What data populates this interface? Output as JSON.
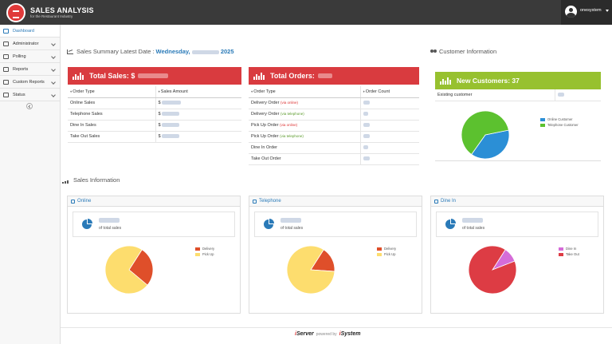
{
  "header": {
    "app_title": "SALES ANALYSIS",
    "app_subtitle": "for the Restaurant Industry",
    "username": "onesystem"
  },
  "sidebar": {
    "items": [
      {
        "label": "Dashboard",
        "icon": "dashboard-icon"
      },
      {
        "label": "Administrator",
        "icon": "monitor-icon"
      },
      {
        "label": "Polling",
        "icon": "list-icon"
      },
      {
        "label": "Reports",
        "icon": "report-icon"
      },
      {
        "label": "Custom Reports",
        "icon": "custom-report-icon"
      },
      {
        "label": "Status",
        "icon": "status-icon"
      }
    ]
  },
  "summary": {
    "title": "Sales Summary Latest Date :",
    "date_prefix": "Wednesday,",
    "date_year": "2025"
  },
  "total_sales": {
    "label": "Total Sales: $",
    "col_type": "Order Type",
    "col_amount": "Sales Amount",
    "rows": [
      {
        "type": "Online Sales",
        "amount": "$"
      },
      {
        "type": "Telephone Sales",
        "amount": "$"
      },
      {
        "type": "Dine In Sales",
        "amount": "$"
      },
      {
        "type": "Take Out Sales",
        "amount": "$"
      }
    ]
  },
  "total_orders": {
    "label": "Total Orders:",
    "col_type": "Order Type",
    "col_count": "Order Count",
    "rows": [
      {
        "type": "Delivery Order",
        "sub": "(via online)"
      },
      {
        "type": "Delivery Order",
        "sub": "(via telephone)"
      },
      {
        "type": "Pick Up Order",
        "sub": "(via online)"
      },
      {
        "type": "Pick Up Order",
        "sub": "(via telephone)"
      },
      {
        "type": "Dine In Order",
        "sub": ""
      },
      {
        "type": "Take Out Order",
        "sub": ""
      }
    ]
  },
  "customer_info": {
    "title": "Customer Information",
    "new_customers_label": "New Customers: 37",
    "existing_label": "Existing customer",
    "legend": [
      {
        "label": "Online Customer",
        "color": "#2b8fd6"
      },
      {
        "label": "Telephone Customer",
        "color": "#5cc12f"
      }
    ],
    "slices": [
      0.38,
      0.62
    ]
  },
  "sales_info": {
    "title": "Sales Information",
    "panels": [
      {
        "title": "Online",
        "pct_label": "of total sales",
        "legend": [
          {
            "label": "Delivery",
            "color": "#df4f2a"
          },
          {
            "label": "Pick Up",
            "color": "#fddd6e"
          }
        ],
        "slices": [
          0.27,
          0.73
        ]
      },
      {
        "title": "Telephone",
        "pct_label": "of total sales",
        "legend": [
          {
            "label": "Delivery",
            "color": "#df4f2a"
          },
          {
            "label": "Pick Up",
            "color": "#fddd6e"
          }
        ],
        "slices": [
          0.17,
          0.83
        ]
      },
      {
        "title": "Dine In",
        "pct_label": "of total sales",
        "legend": [
          {
            "label": "Dine In",
            "color": "#d56cd8"
          },
          {
            "label": "Take Out",
            "color": "#dd3c44"
          }
        ],
        "slices": [
          0.1,
          0.9
        ]
      }
    ]
  },
  "footer": {
    "product": "Server",
    "powered_by": "powered by",
    "company": "System"
  }
}
